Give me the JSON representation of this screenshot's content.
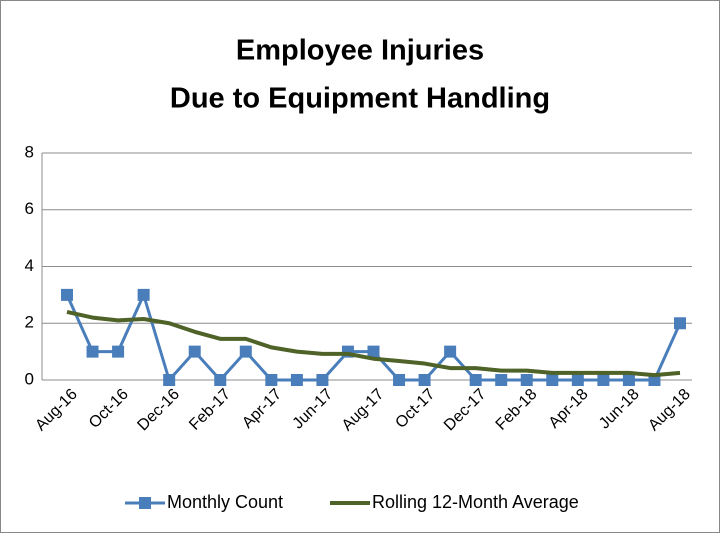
{
  "chart_data": {
    "type": "line",
    "title": [
      "Employee Injuries",
      "Due to Equipment Handling"
    ],
    "categories": [
      "Aug-16",
      null,
      "Oct-16",
      null,
      "Dec-16",
      null,
      "Feb-17",
      null,
      "Apr-17",
      null,
      "Jun-17",
      null,
      "Aug-17",
      null,
      "Oct-17",
      null,
      "Dec-17",
      null,
      "Feb-18",
      null,
      "Apr-18",
      null,
      "Jun-18",
      null,
      "Aug-18"
    ],
    "series": [
      {
        "name": "Monthly Count",
        "color": "#4a7ebb",
        "marker": "square",
        "values": [
          3,
          1,
          1,
          3,
          0,
          1,
          0,
          1,
          0,
          0,
          0,
          1,
          1,
          0,
          0,
          1,
          0,
          0,
          0,
          0,
          0,
          0,
          0,
          0,
          2
        ]
      },
      {
        "name": "Rolling 12-Month Average",
        "color": "#4f6228",
        "values": [
          2.4,
          2.2,
          2.1,
          2.15,
          2.0,
          1.7,
          1.45,
          1.45,
          1.15,
          1.0,
          0.92,
          0.92,
          0.75,
          0.67,
          0.58,
          0.42,
          0.42,
          0.33,
          0.33,
          0.25,
          0.25,
          0.25,
          0.25,
          0.17,
          0.25
        ]
      }
    ],
    "ylim": [
      0,
      8
    ],
    "yticks": [
      0,
      2,
      4,
      6,
      8
    ],
    "grid": true,
    "legend": "bottom"
  }
}
